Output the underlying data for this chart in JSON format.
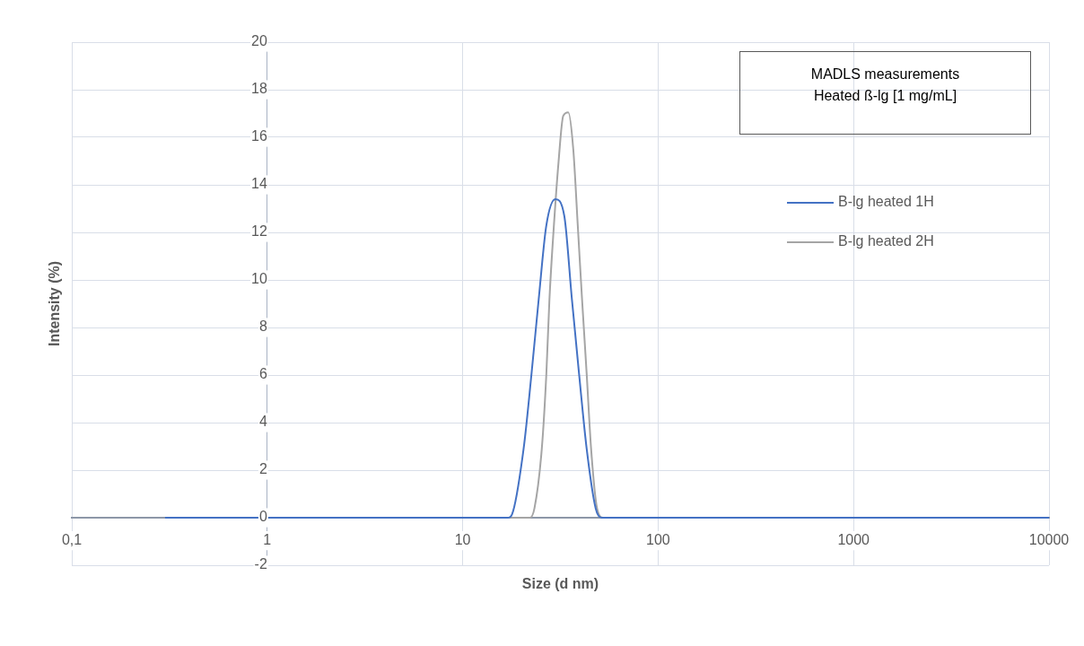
{
  "chart_data": {
    "type": "line",
    "xlabel": "Size (d nm)",
    "ylabel": "Intensity (%)",
    "annotations": [
      "MADLS measurements\nHeated ß-lg [1 mg/mL]"
    ],
    "log": "x",
    "grid": true,
    "legend": "right",
    "xlim": [
      0.1,
      10000
    ],
    "xticks": [
      {
        "value": 0.1,
        "label": "0,1"
      },
      1,
      10,
      100,
      1000,
      10000
    ],
    "ylim": [
      -2,
      20
    ],
    "yticks": [
      -2,
      0,
      2,
      4,
      6,
      8,
      10,
      12,
      14,
      16,
      18,
      20
    ],
    "series": [
      {
        "name": "B-lg heated 1H",
        "color": "#4472c4",
        "x": [
          0.3,
          17,
          17.9,
          20.5,
          22.5,
          24.5,
          26.8,
          29.8,
          33.1,
          36.2,
          39.4,
          43.1,
          47.9,
          51.4,
          55,
          10000
        ],
        "values": [
          0,
          0,
          0.15,
          2.9,
          6.05,
          9.2,
          12.3,
          13.4,
          12.7,
          9.2,
          6.05,
          2.9,
          0.4,
          0,
          0,
          0
        ]
      },
      {
        "name": "B-lg heated 2H",
        "color": "#a5a5a5",
        "x": [
          0.3,
          21,
          22.1,
          23.3,
          25.4,
          26.8,
          27.8,
          29.3,
          30.9,
          32.7,
          34.7,
          36.8,
          38.8,
          40.8,
          43.1,
          45.4,
          48.7,
          52.4,
          56,
          10000
        ],
        "values": [
          0,
          0,
          0,
          0.4,
          2.9,
          6.05,
          9.2,
          12.3,
          14.9,
          16.9,
          17.05,
          15.5,
          12.3,
          9.2,
          6.05,
          2.9,
          0.4,
          0,
          0,
          0
        ]
      }
    ]
  }
}
